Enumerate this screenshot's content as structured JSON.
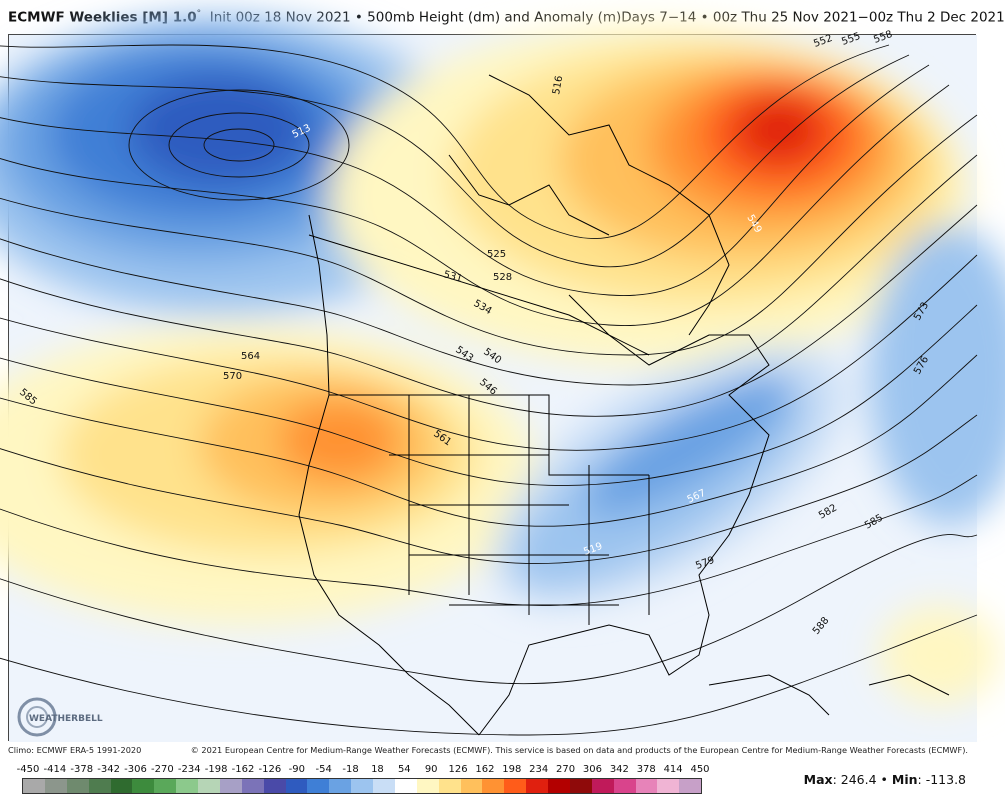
{
  "header": {
    "product": "ECMWF Weeklies [M] 1.0",
    "degree": "°",
    "rest": "Init 00z 18 Nov 2021 • 500mb Height (dm) and Anomaly (m)Days 7−14 • 00z Thu 25 Nov 2021−00z Thu 2 Dec 2021"
  },
  "map": {
    "contour_labels": [
      {
        "text": "513"
      },
      {
        "text": "516"
      },
      {
        "text": "519"
      },
      {
        "text": "525"
      },
      {
        "text": "528"
      },
      {
        "text": "531"
      },
      {
        "text": "534"
      },
      {
        "text": "540"
      },
      {
        "text": "543"
      },
      {
        "text": "546"
      },
      {
        "text": "549"
      },
      {
        "text": "552"
      },
      {
        "text": "555"
      },
      {
        "text": "558"
      },
      {
        "text": "561"
      },
      {
        "text": "564"
      },
      {
        "text": "567"
      },
      {
        "text": "570"
      },
      {
        "text": "573"
      },
      {
        "text": "576"
      },
      {
        "text": "579"
      },
      {
        "text": "582"
      },
      {
        "text": "585"
      },
      {
        "text": "585"
      },
      {
        "text": "588"
      }
    ],
    "logo_text": "WEATHERBELL"
  },
  "credits": {
    "left": "Climo: ECMWF ERA-5 1991-2020",
    "right": "© 2021 European Centre for Medium-Range Weather Forecasts (ECMWF). This service is based on data and products of the European Centre for Medium-Range Weather Forecasts (ECMWF)."
  },
  "scale": {
    "ticks": [
      "-450",
      "-414",
      "-378",
      "-342",
      "-306",
      "-270",
      "-234",
      "-198",
      "-162",
      "-126",
      "-90",
      "-54",
      "-18",
      "18",
      "54",
      "90",
      "126",
      "162",
      "198",
      "234",
      "270",
      "306",
      "342",
      "378",
      "414",
      "450"
    ],
    "colors": [
      "#a9a9a9",
      "#8c968c",
      "#6f8a6e",
      "#4f7c4f",
      "#2f6b2f",
      "#3d8b3d",
      "#5aa85a",
      "#8cc98c",
      "#b6d5b6",
      "#a7a0c6",
      "#7b73b8",
      "#4a4aa8",
      "#2f5bbf",
      "#3f7fd6",
      "#6aa2e3",
      "#9cc4ef",
      "#c9def6",
      "#ffffff",
      "#fff7c2",
      "#ffe28c",
      "#ffc05c",
      "#ff9233",
      "#ff5c1a",
      "#e0200f",
      "#b30000",
      "#8f0a0a",
      "#c01a5a",
      "#d9448c",
      "#e783b9",
      "#f0b4d4",
      "#c7a0c8"
    ]
  },
  "stats": {
    "max_label": "Max",
    "max_value": "246.4",
    "sep": "•",
    "min_label": "Min",
    "min_value": "-113.8"
  }
}
